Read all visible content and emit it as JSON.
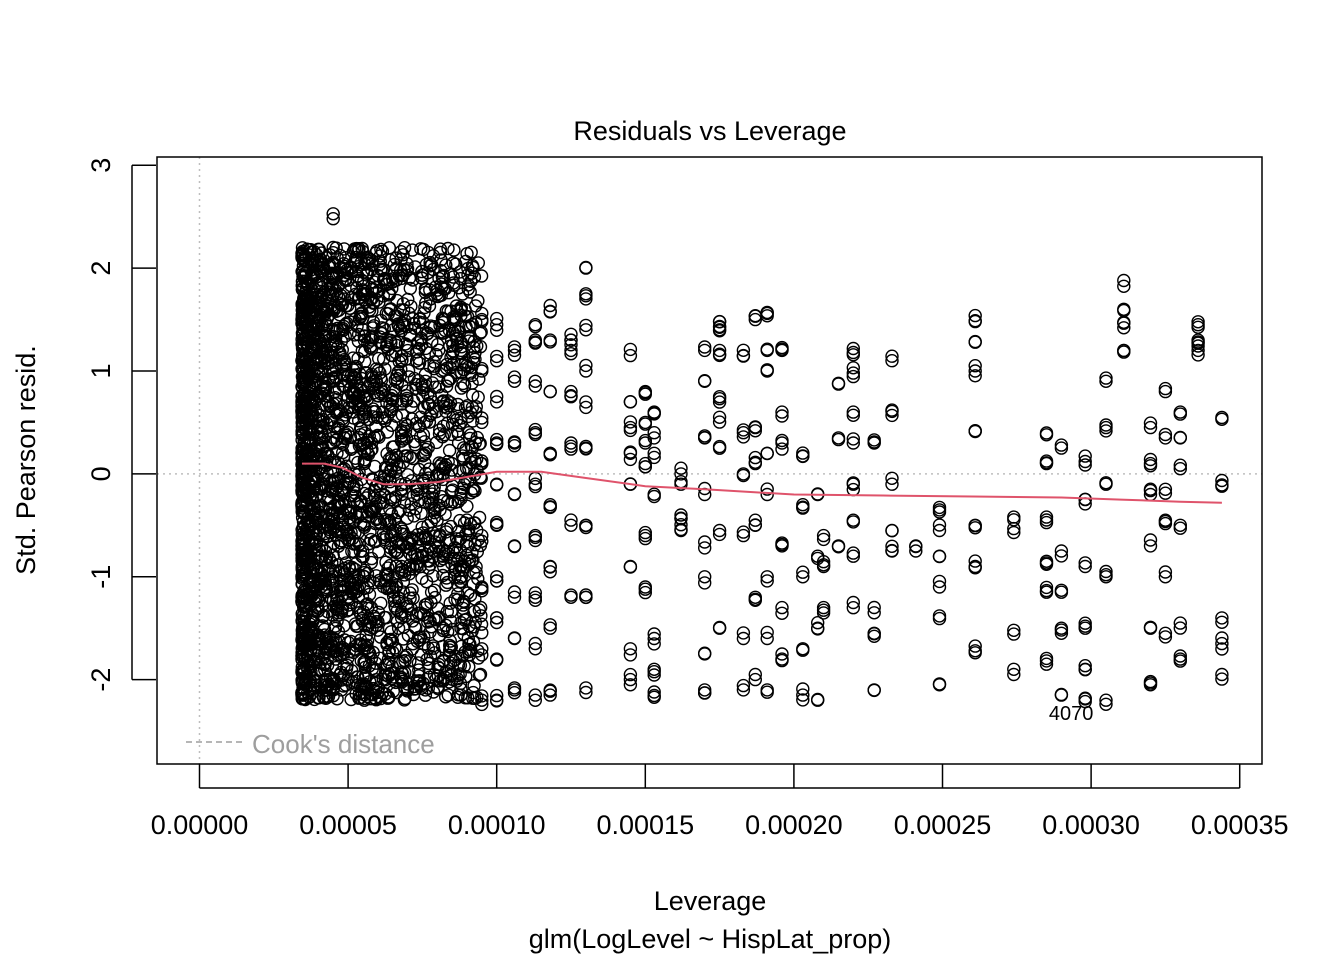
{
  "chart_data": {
    "type": "scatter",
    "title": "Residuals vs Leverage",
    "xlabel": "Leverage",
    "subtitle": "glm(LogLevel ~ HispLat_prop)",
    "ylabel": "Std. Pearson resid.",
    "xlim": [
      -1.43e-05,
      0.0003575
    ],
    "ylim": [
      -2.82,
      3.08
    ],
    "x_ticks": [
      0,
      5e-05,
      0.0001,
      0.00015,
      0.0002,
      0.00025,
      0.0003,
      0.00035
    ],
    "x_tick_labels": [
      "0.00000",
      "0.00005",
      "0.00010",
      "0.00015",
      "0.00020",
      "0.00025",
      "0.00030",
      "0.00035"
    ],
    "y_ticks": [
      -2,
      -1,
      0,
      1,
      2,
      3
    ],
    "y_tick_labels": [
      "-2",
      "-1",
      "0",
      "1",
      "2",
      "3"
    ],
    "legend": {
      "label": "Cook's distance",
      "placement": "bottom-left",
      "line_style": "dashed",
      "color": "#9e9e9e"
    },
    "reference_lines": {
      "h": 0,
      "v": 0,
      "style": "dotted",
      "color": "#bebebe"
    },
    "outlier_labels": [
      {
        "label": "4070",
        "x": 0.000298,
        "y": -2.18
      }
    ],
    "smooth_line": {
      "color": "#df536b",
      "x": [
        3.45e-05,
        4.2e-05,
        4.8e-05,
        5.5e-05,
        6.2e-05,
        7e-05,
        8e-05,
        9.2e-05,
        0.0001,
        0.000115,
        0.00013,
        0.00015,
        0.00017,
        0.0002,
        0.00023,
        0.00026,
        0.00029,
        0.00031,
        0.00033,
        0.000344
      ],
      "y": [
        0.1,
        0.1,
        0.06,
        -0.04,
        -0.1,
        -0.1,
        -0.08,
        -0.02,
        0.02,
        0.02,
        -0.04,
        -0.12,
        -0.15,
        -0.2,
        -0.21,
        -0.22,
        -0.23,
        -0.25,
        -0.27,
        -0.28
      ]
    },
    "series": [
      {
        "marker": "open-circle",
        "dense_region": {
          "x_range": [
            3.45e-05,
            9.5e-05
          ],
          "y_range": [
            -2.2,
            2.2
          ]
        },
        "columns": [
          {
            "x": 3.45e-05,
            "y": [
              -2.15,
              -1.8,
              -1.2,
              -0.7,
              -0.3,
              0.2,
              0.6,
              1.1,
              1.5,
              2.1
            ]
          },
          {
            "x": 4.5e-05,
            "y": [
              -2.1,
              -1.6,
              -1.0,
              -0.4,
              0.3,
              0.9,
              1.4,
              1.9,
              2.2,
              2.48
            ]
          },
          {
            "x": 5.55e-05,
            "y": [
              -2.2,
              -1.7,
              -1.0,
              -0.5,
              0.1,
              0.8,
              1.3,
              1.75
            ]
          },
          {
            "x": 6.8e-05,
            "y": [
              -2.0,
              -1.4,
              -0.9,
              -0.2,
              0.4,
              1.1,
              1.9
            ]
          },
          {
            "x": 7.6e-05,
            "y": [
              -2.1,
              -1.3,
              -0.6,
              0.2,
              0.9,
              1.8
            ]
          },
          {
            "x": 8.2e-05,
            "y": [
              -2.0,
              -1.5,
              -0.8,
              0.0,
              0.7,
              1.5
            ]
          },
          {
            "x": 8.8e-05,
            "y": [
              -2.15,
              -1.5,
              -0.9,
              -0.2,
              0.5,
              1.2,
              1.6
            ]
          },
          {
            "x": 9.5e-05,
            "y": [
              -2.2,
              -1.7,
              -1.1,
              -0.6,
              0.1,
              0.5,
              1.0,
              1.5
            ]
          },
          {
            "x": 0.0001,
            "y": [
              -2.2,
              -1.8,
              -1.4,
              -1.0,
              -0.5,
              -0.1,
              0.3,
              0.7,
              1.1,
              1.45
            ]
          },
          {
            "x": 0.000106,
            "y": [
              -2.1,
              -1.6,
              -1.2,
              -0.7,
              -0.2,
              0.3,
              0.9,
              1.2
            ]
          },
          {
            "x": 0.000113,
            "y": [
              -2.15,
              -1.7,
              -1.2,
              -0.6,
              -0.1,
              0.4,
              0.9,
              1.3,
              1.45
            ]
          },
          {
            "x": 0.000118,
            "y": [
              -2.15,
              -1.5,
              -0.9,
              -0.3,
              0.2,
              0.8,
              1.3,
              1.58
            ]
          },
          {
            "x": 0.000125,
            "y": [
              -1.2,
              -0.5,
              0.3,
              0.8,
              1.2,
              1.3
            ]
          },
          {
            "x": 0.00013,
            "y": [
              -2.08,
              -1.2,
              -0.5,
              0.25,
              0.7,
              1.0,
              1.4,
              1.75,
              2.0
            ]
          },
          {
            "x": 0.000145,
            "y": [
              -2.0,
              -1.7,
              -0.9,
              -0.1,
              0.2,
              0.45,
              0.7,
              1.15
            ]
          },
          {
            "x": 0.00015,
            "y": [
              -1.1,
              -0.6,
              0.1,
              0.3,
              0.5,
              0.8
            ]
          },
          {
            "x": 0.000153,
            "y": [
              -2.12,
              -1.9,
              -1.6,
              -0.22,
              0.2,
              0.4,
              0.6
            ]
          },
          {
            "x": 0.000162,
            "y": [
              -0.55,
              -0.4,
              -0.1,
              0.0
            ]
          },
          {
            "x": 0.00017,
            "y": [
              -2.1,
              -1.75,
              -1.0,
              -0.72,
              -0.2,
              0.35,
              0.9,
              1.2
            ]
          },
          {
            "x": 0.000175,
            "y": [
              -1.5,
              -0.55,
              0.25,
              0.55,
              0.75,
              1.2,
              1.4,
              1.48
            ]
          },
          {
            "x": 0.000183,
            "y": [
              -2.1,
              -1.6,
              -0.6,
              0.0,
              0.4,
              1.15
            ]
          },
          {
            "x": 0.000187,
            "y": [
              -2.0,
              -1.2,
              -0.45,
              0.1,
              0.45,
              1.5
            ]
          },
          {
            "x": 0.000191,
            "y": [
              -2.1,
              -1.6,
              -1.0,
              -0.2,
              0.2,
              1.0,
              1.2,
              1.56
            ]
          },
          {
            "x": 0.000196,
            "y": [
              -1.8,
              -1.3,
              -0.7,
              0.3,
              0.6,
              1.2
            ]
          },
          {
            "x": 0.000203,
            "y": [
              -2.15,
              -1.7,
              -1.0,
              -0.3,
              0.17
            ]
          },
          {
            "x": 0.000208,
            "y": [
              -2.2,
              -1.5,
              -0.8,
              -0.2
            ]
          },
          {
            "x": 0.00021,
            "y": [
              -1.3,
              -0.9,
              -0.6
            ]
          },
          {
            "x": 0.000215,
            "y": [
              -0.7,
              0.35,
              0.88
            ]
          },
          {
            "x": 0.00022,
            "y": [
              -1.25,
              -0.8,
              -0.45,
              -0.1,
              0.3,
              0.6,
              0.98,
              1.18
            ]
          },
          {
            "x": 0.000227,
            "y": [
              -2.1,
              -1.55,
              -1.35,
              0.3
            ]
          },
          {
            "x": 0.000233,
            "y": [
              -0.75,
              -0.55,
              -0.1,
              0.62,
              1.1
            ]
          },
          {
            "x": 0.000241,
            "y": [
              -0.75
            ]
          },
          {
            "x": 0.000249,
            "y": [
              -2.05,
              -1.38,
              -1.1,
              -0.8,
              -0.55,
              -0.35
            ]
          },
          {
            "x": 0.000261,
            "y": [
              -1.72,
              -0.9,
              -0.5,
              0.42,
              1.0,
              1.28,
              1.48
            ]
          },
          {
            "x": 0.000274,
            "y": [
              -1.9,
              -1.52,
              -0.57,
              -0.42
            ]
          },
          {
            "x": 0.000285,
            "y": [
              -1.85,
              -1.15,
              -0.85,
              -0.42,
              0.1,
              0.38
            ]
          },
          {
            "x": 0.00029,
            "y": [
              -2.15,
              -1.55,
              -1.15,
              -0.75,
              0.28
            ]
          },
          {
            "x": 0.000298,
            "y": [
              -2.18,
              -1.9,
              -1.5,
              -0.9,
              -0.25,
              0.12
            ]
          },
          {
            "x": 0.000305,
            "y": [
              -2.2,
              -1.0,
              -0.1,
              0.45,
              0.9
            ]
          },
          {
            "x": 0.000311,
            "y": [
              1.2,
              1.42,
              1.6,
              1.88
            ]
          },
          {
            "x": 0.00032,
            "y": [
              -2.05,
              -1.5,
              -0.7,
              -0.2,
              0.1,
              0.45
            ]
          },
          {
            "x": 0.000325,
            "y": [
              -1.55,
              -1.0,
              -0.45,
              -0.15,
              0.35,
              0.8
            ]
          },
          {
            "x": 0.00033,
            "y": [
              -1.82,
              -1.45,
              -0.5,
              0.05,
              0.35,
              0.6
            ]
          },
          {
            "x": 0.000336,
            "y": [
              1.2,
              1.3,
              1.45
            ]
          },
          {
            "x": 0.000344,
            "y": [
              -1.95,
              -1.65,
              -1.4,
              -0.12,
              0.53
            ]
          }
        ]
      }
    ]
  }
}
